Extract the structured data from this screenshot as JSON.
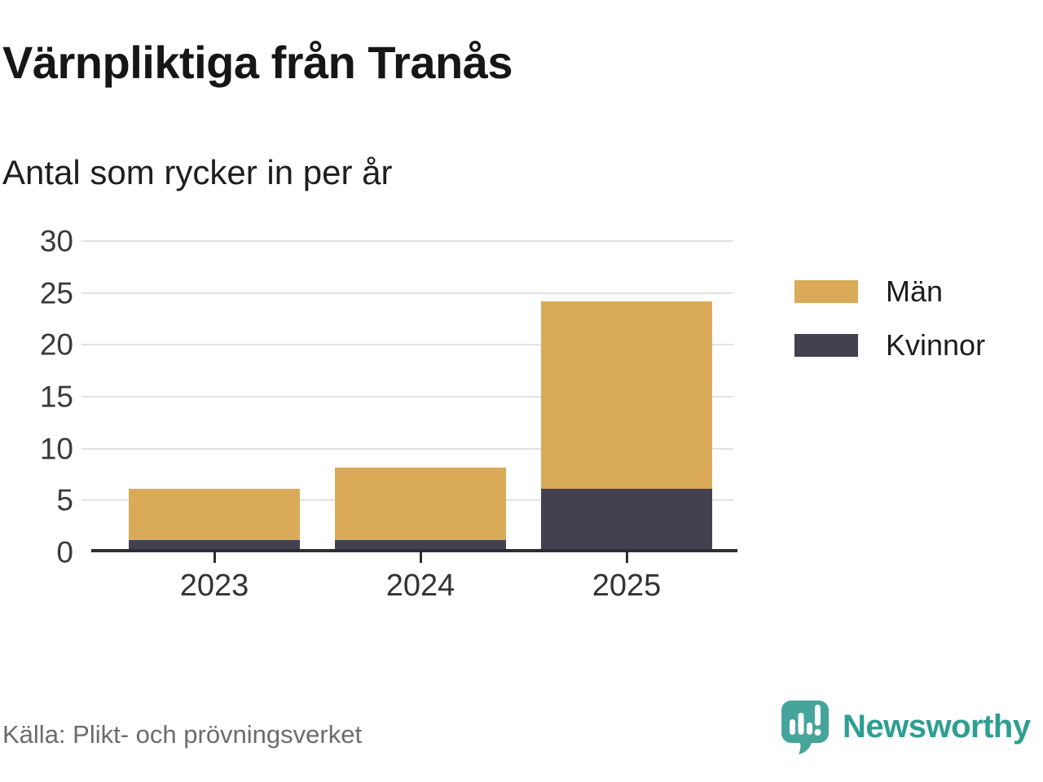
{
  "title": "Värnpliktiga från Tranås",
  "subtitle": "Antal som rycker in per år",
  "source": "Källa: Plikt- och prövningsverket",
  "branding": {
    "name": "Newsworthy",
    "logo_icon": "newsworthy-speech-bubble-bar-chart-icon",
    "text_color": "#2e9e92",
    "logo_color": "#46a59b"
  },
  "colors": {
    "men": "#d9ab59",
    "women": "#434150",
    "gridline": "#e2e2e2",
    "axis": "#2d2c32"
  },
  "chart_data": {
    "type": "bar",
    "stacked": true,
    "title": "Värnpliktiga från Tranås",
    "subtitle": "Antal som rycker in per år",
    "categories": [
      "2023",
      "2024",
      "2025"
    ],
    "series": [
      {
        "name": "Män",
        "color": "#d9ab59",
        "values": [
          5,
          7,
          18
        ]
      },
      {
        "name": "Kvinnor",
        "color": "#434150",
        "values": [
          1,
          1,
          6
        ]
      }
    ],
    "stack_totals": [
      6,
      8,
      24
    ],
    "ylim": [
      0,
      30
    ],
    "yticks": [
      0,
      5,
      10,
      15,
      20,
      25,
      30
    ],
    "grid": true,
    "legend_position": "right",
    "legend_order": [
      "Män",
      "Kvinnor"
    ]
  }
}
